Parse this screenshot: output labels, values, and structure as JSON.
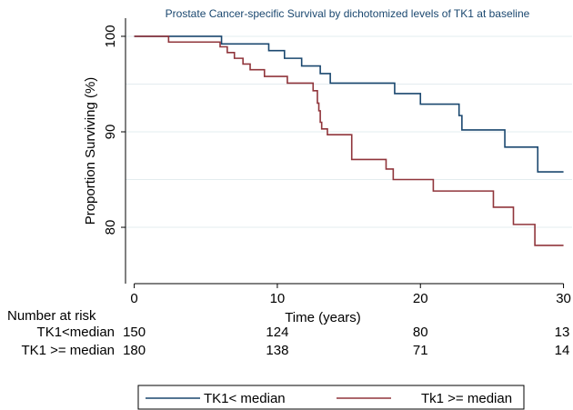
{
  "chart_data": {
    "type": "step",
    "title": "Prostate Cancer-specific Survival by dichotomized levels of TK1 at baseline",
    "x_label": "Time (years)",
    "y_label": "Proportion Surviving (%)",
    "xlim": [
      -1.5,
      30.6
    ],
    "ylim": [
      74.1,
      101.9
    ],
    "xticks": [
      0,
      10,
      20,
      30
    ],
    "yticks": [
      80,
      90,
      100
    ],
    "grid_lines": [
      80,
      85,
      90,
      95,
      100
    ],
    "series": [
      {
        "name": "TK1< median",
        "color": "#1a476f",
        "x": [
          0,
          6.1,
          9.4,
          10.5,
          11.7,
          13.0,
          13.7,
          18.2,
          20.0,
          22.7,
          22.9,
          25.9,
          28.2,
          30
        ],
        "values": [
          100,
          99.2,
          98.5,
          97.7,
          96.9,
          96.1,
          95.1,
          94.0,
          92.9,
          91.7,
          90.2,
          88.4,
          85.8,
          85.8
        ]
      },
      {
        "name": "Tk1 >= median",
        "color": "#90353b",
        "x": [
          0,
          2.4,
          6.0,
          6.5,
          7.0,
          7.6,
          8.1,
          9.1,
          10.7,
          12.5,
          12.8,
          12.9,
          13.0,
          13.1,
          13.5,
          15.2,
          17.6,
          18.1,
          20.9,
          25.1,
          26.5,
          28.0,
          30
        ],
        "values": [
          100,
          99.4,
          98.9,
          98.3,
          97.7,
          97.1,
          96.5,
          95.8,
          95.1,
          94.3,
          93.0,
          92.2,
          91.0,
          90.3,
          89.7,
          87.1,
          86.1,
          85.0,
          83.8,
          82.1,
          80.3,
          78.1,
          78.1
        ]
      }
    ],
    "risk_table": {
      "title": "Number at risk",
      "times": [
        0,
        10,
        20,
        30
      ],
      "rows": [
        {
          "label": "TK1<median",
          "values": [
            150,
            124,
            80,
            13
          ]
        },
        {
          "label": "TK1 >= median",
          "values": [
            180,
            138,
            71,
            14
          ]
        }
      ]
    }
  }
}
